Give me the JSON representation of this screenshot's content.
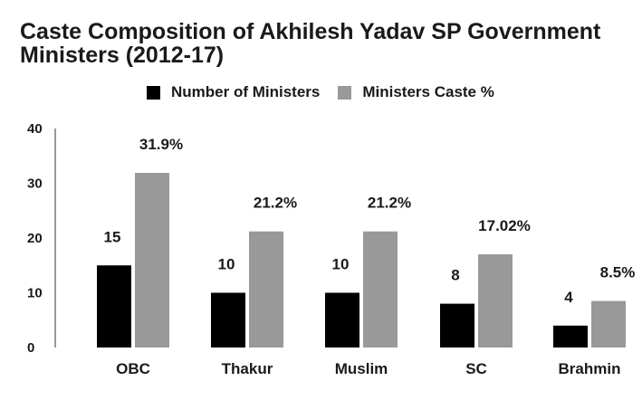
{
  "chart_data": {
    "type": "bar",
    "title": "Caste Composition of Akhilesh Yadav SP Government Ministers (2012-17)",
    "categories": [
      "OBC",
      "Thakur",
      "Muslim",
      "SC",
      "Brahmin"
    ],
    "series": [
      {
        "name": "Number of Ministers",
        "values": [
          15,
          10,
          10,
          8,
          4
        ],
        "labels": [
          "15",
          "10",
          "10",
          "8",
          "4"
        ],
        "color": "#000000"
      },
      {
        "name": "Ministers Caste %",
        "values": [
          31.9,
          21.2,
          21.2,
          17.02,
          8.5
        ],
        "labels": [
          "31.9%",
          "21.2%",
          "21.2%",
          "17.02%",
          "8.5%"
        ],
        "color": "#999999"
      }
    ],
    "yticks": [
      "0",
      "10",
      "20",
      "30",
      "40"
    ],
    "ylim": [
      0,
      40
    ],
    "xlabel": "",
    "ylabel": "",
    "grid": false,
    "legend_position": "top"
  }
}
